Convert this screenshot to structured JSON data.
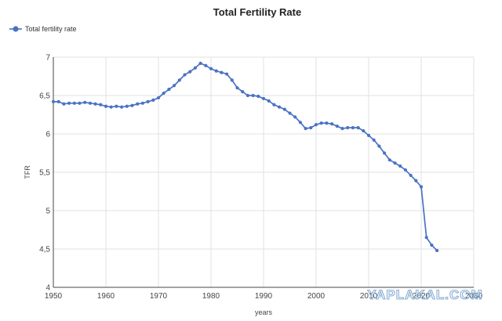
{
  "chart_data": {
    "type": "line",
    "title": "Total Fertility Rate",
    "xlabel": "years",
    "ylabel": "TFR",
    "xlim": [
      1950,
      2030
    ],
    "ylim": [
      4,
      7
    ],
    "xticks": [
      1950,
      1960,
      1970,
      1980,
      1990,
      2000,
      2010,
      2020,
      2030
    ],
    "xtick_labels": [
      "1950",
      "1960",
      "1970",
      "1980",
      "1990",
      "2000",
      "2010",
      "2020",
      "2030"
    ],
    "yticks": [
      4,
      4.5,
      5,
      5.5,
      6,
      6.5,
      7
    ],
    "ytick_labels": [
      "4",
      "4,5",
      "5",
      "5,5",
      "6",
      "6,5",
      "7"
    ],
    "grid": true,
    "legend_position": "top-left",
    "series": [
      {
        "name": "Total fertility rate",
        "color": "#4a72c4",
        "marker": "circle",
        "x": [
          1950,
          1951,
          1952,
          1953,
          1954,
          1955,
          1956,
          1957,
          1958,
          1959,
          1960,
          1961,
          1962,
          1963,
          1964,
          1965,
          1966,
          1967,
          1968,
          1969,
          1970,
          1971,
          1972,
          1973,
          1974,
          1975,
          1976,
          1977,
          1978,
          1979,
          1980,
          1981,
          1982,
          1983,
          1984,
          1985,
          1986,
          1987,
          1988,
          1989,
          1990,
          1991,
          1992,
          1993,
          1994,
          1995,
          1996,
          1997,
          1998,
          1999,
          2000,
          2001,
          2002,
          2003,
          2004,
          2005,
          2006,
          2007,
          2008,
          2009,
          2010,
          2011,
          2012,
          2013,
          2014,
          2015,
          2016,
          2017,
          2018,
          2019,
          2020,
          2021,
          2022,
          2023
        ],
        "y": [
          6.42,
          6.42,
          6.39,
          6.4,
          6.4,
          6.4,
          6.41,
          6.4,
          6.39,
          6.38,
          6.36,
          6.35,
          6.36,
          6.35,
          6.36,
          6.37,
          6.39,
          6.4,
          6.42,
          6.44,
          6.47,
          6.53,
          6.58,
          6.63,
          6.7,
          6.77,
          6.81,
          6.86,
          6.92,
          6.89,
          6.85,
          6.82,
          6.8,
          6.78,
          6.7,
          6.6,
          6.55,
          6.5,
          6.5,
          6.49,
          6.46,
          6.43,
          6.38,
          6.35,
          6.32,
          6.27,
          6.22,
          6.15,
          6.07,
          6.08,
          6.12,
          6.14,
          6.14,
          6.13,
          6.1,
          6.07,
          6.08,
          6.08,
          6.08,
          6.04,
          5.98,
          5.92,
          5.84,
          5.75,
          5.66,
          5.62,
          5.58,
          5.53,
          5.46,
          5.39,
          5.31,
          4.65,
          4.55,
          4.48
        ]
      }
    ]
  },
  "watermark": {
    "text": "YAPLAKAL.COM",
    "color": "#8ab0d6"
  }
}
